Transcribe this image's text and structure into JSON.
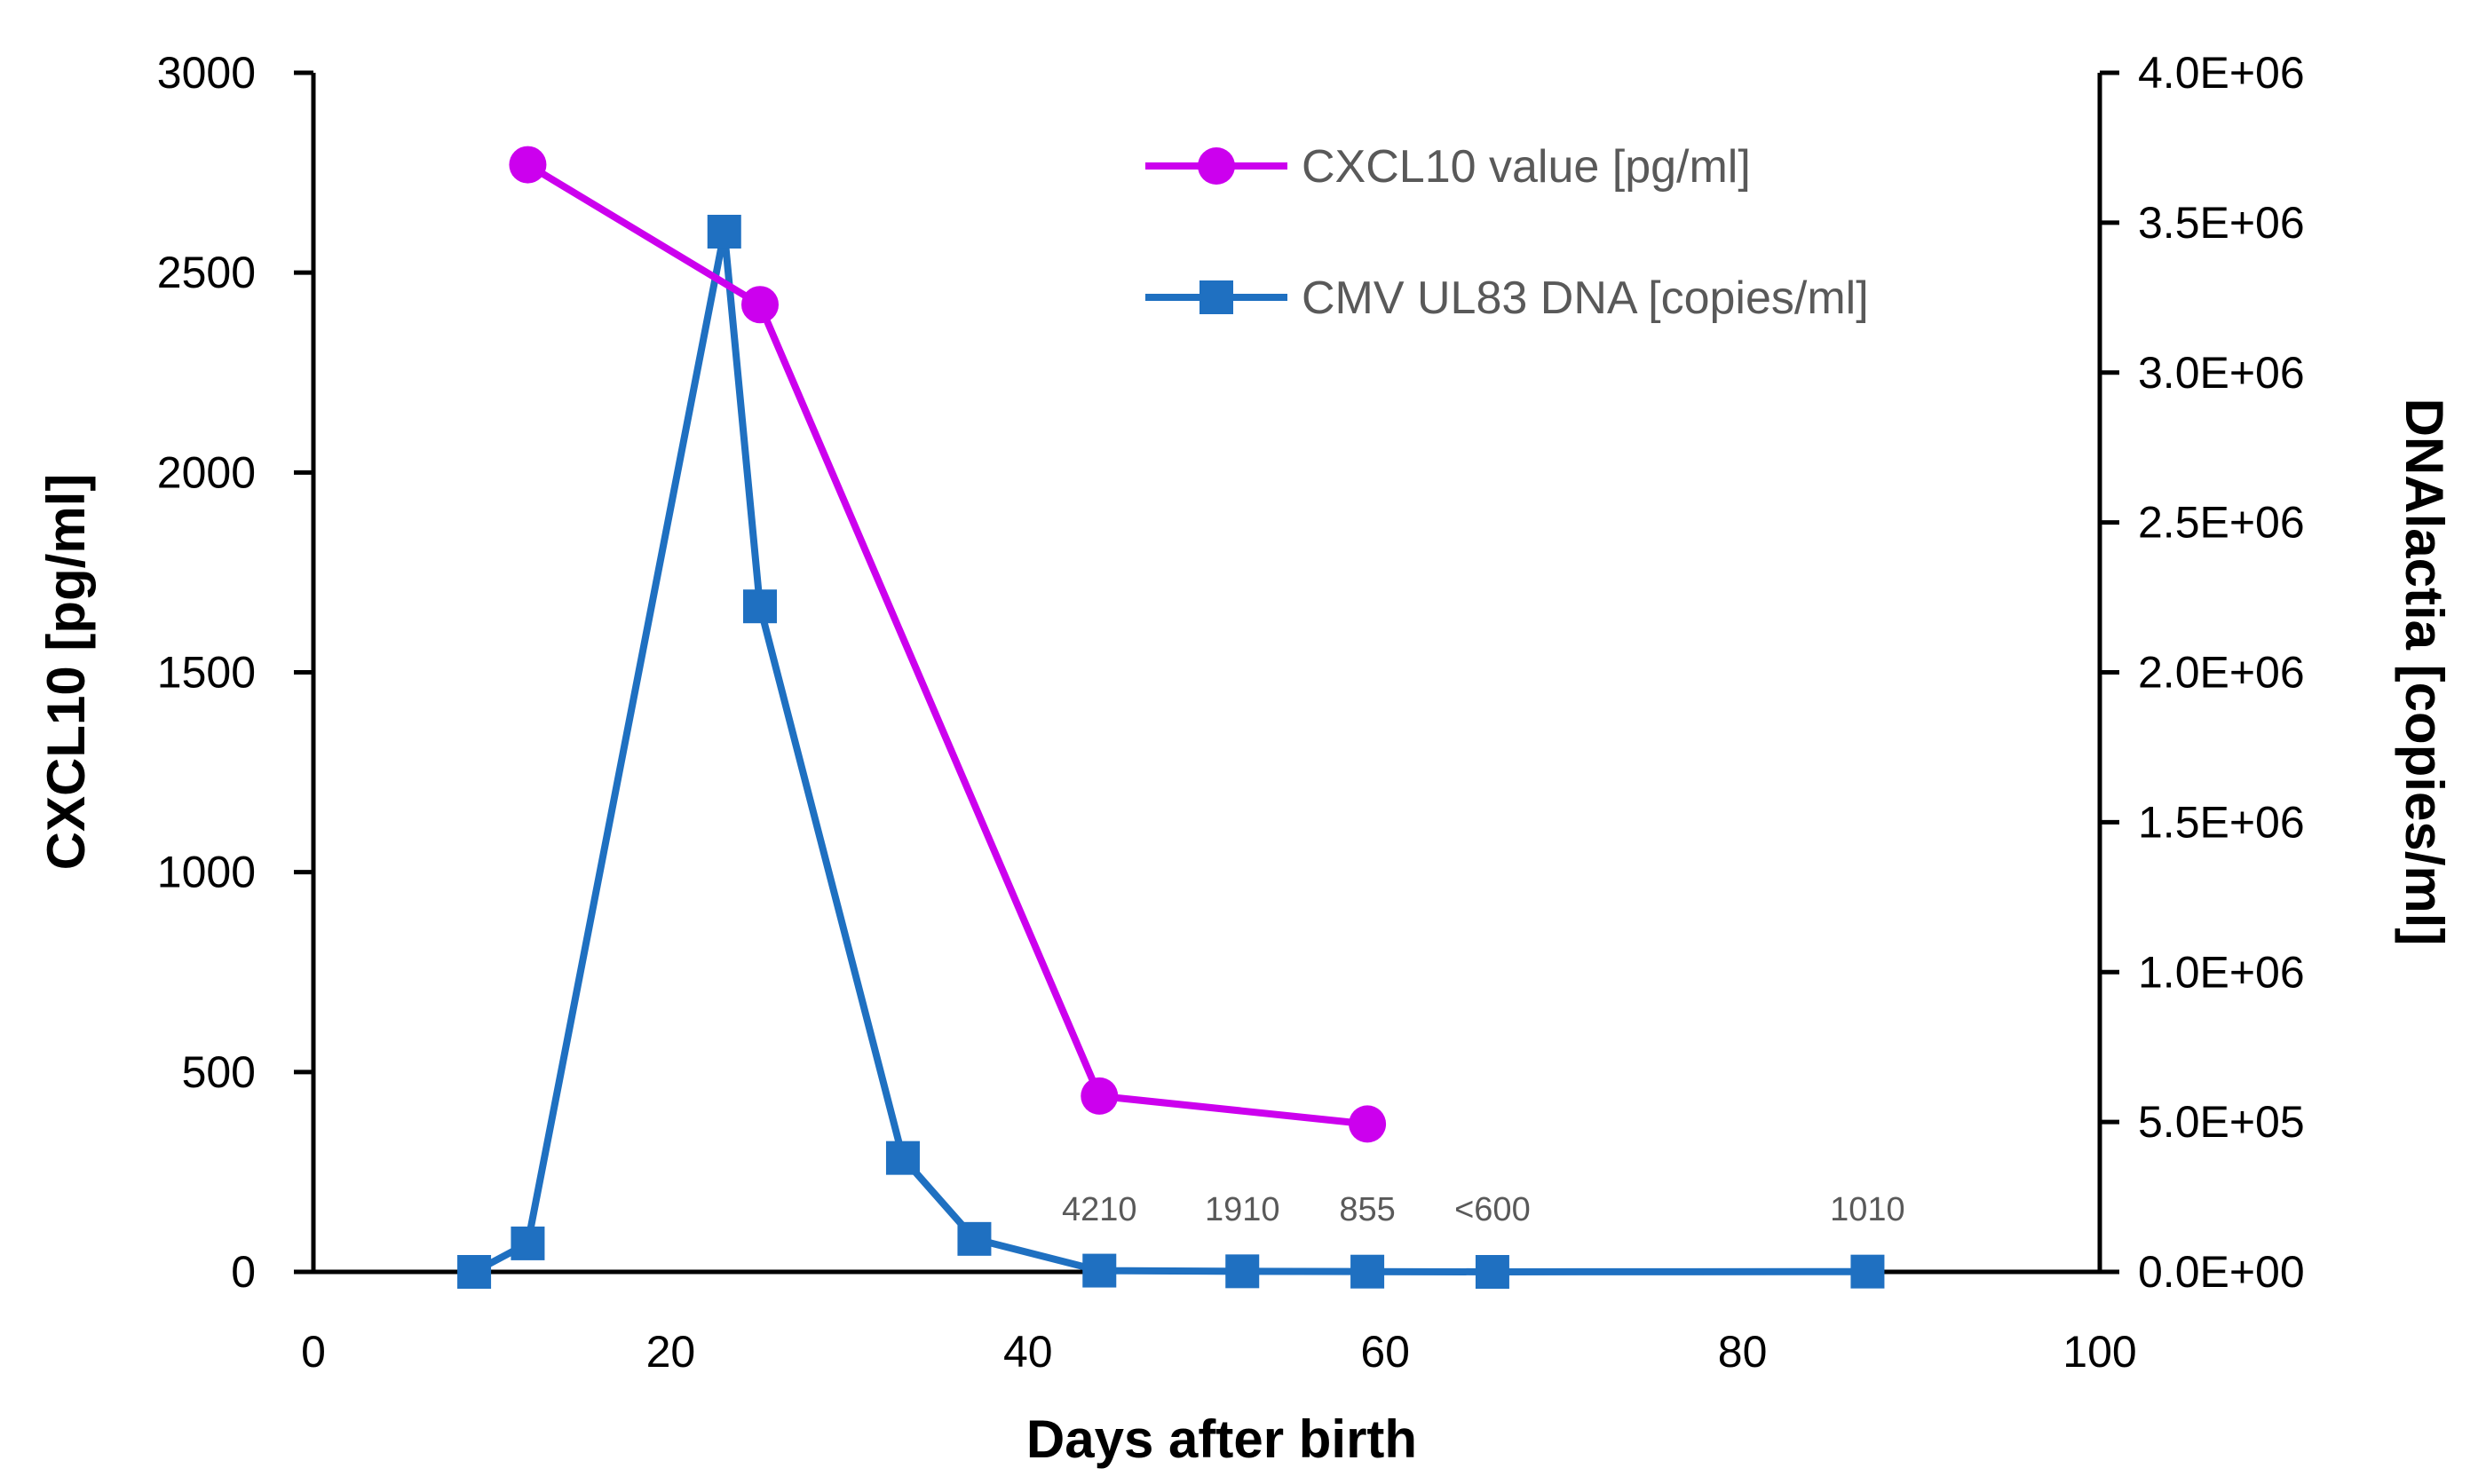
{
  "chart_data": {
    "type": "line",
    "title": "",
    "xlabel": "Days after birth",
    "ylabel_left": "CXCL10 [pg/ml]",
    "ylabel_right": "DNAlactia [copies/ml]",
    "xlim": [
      0,
      100
    ],
    "x_ticks": [
      "0",
      "20",
      "40",
      "60",
      "80",
      "100"
    ],
    "ylim_left": [
      0,
      3000
    ],
    "y_left_ticks": [
      "0",
      "500",
      "1000",
      "1500",
      "2000",
      "2500",
      "3000"
    ],
    "ylim_right": [
      0,
      4000000
    ],
    "y_right_ticks": [
      "0.0E+00",
      "5.0E+05",
      "1.0E+06",
      "1.5E+06",
      "2.0E+06",
      "2.5E+06",
      "3.0E+06",
      "3.5E+06",
      "4.0E+06"
    ],
    "legend_position": "top-right",
    "series": [
      {
        "name": "CXCL10 value [pg/ml]",
        "axis": "left",
        "color": "#CC00EE",
        "marker": "circle",
        "x": [
          12,
          25,
          44,
          59
        ],
        "y": [
          2770,
          2420,
          440,
          370
        ]
      },
      {
        "name": "CMV UL83 DNA [copies/ml]",
        "axis": "right",
        "color": "#1F70C1",
        "marker": "square",
        "x": [
          9,
          12,
          23,
          25,
          33,
          37,
          44,
          52,
          59,
          66,
          87
        ],
        "y": [
          0,
          95000,
          3470000,
          2220000,
          380000,
          110000,
          4210,
          1910,
          855,
          0,
          1010
        ]
      }
    ],
    "annotations": [
      {
        "text": "4210",
        "x": 44
      },
      {
        "text": "1910",
        "x": 52
      },
      {
        "text": "855",
        "x": 59
      },
      {
        "text": "<600",
        "x": 66
      },
      {
        "text": "1010",
        "x": 87
      }
    ]
  }
}
